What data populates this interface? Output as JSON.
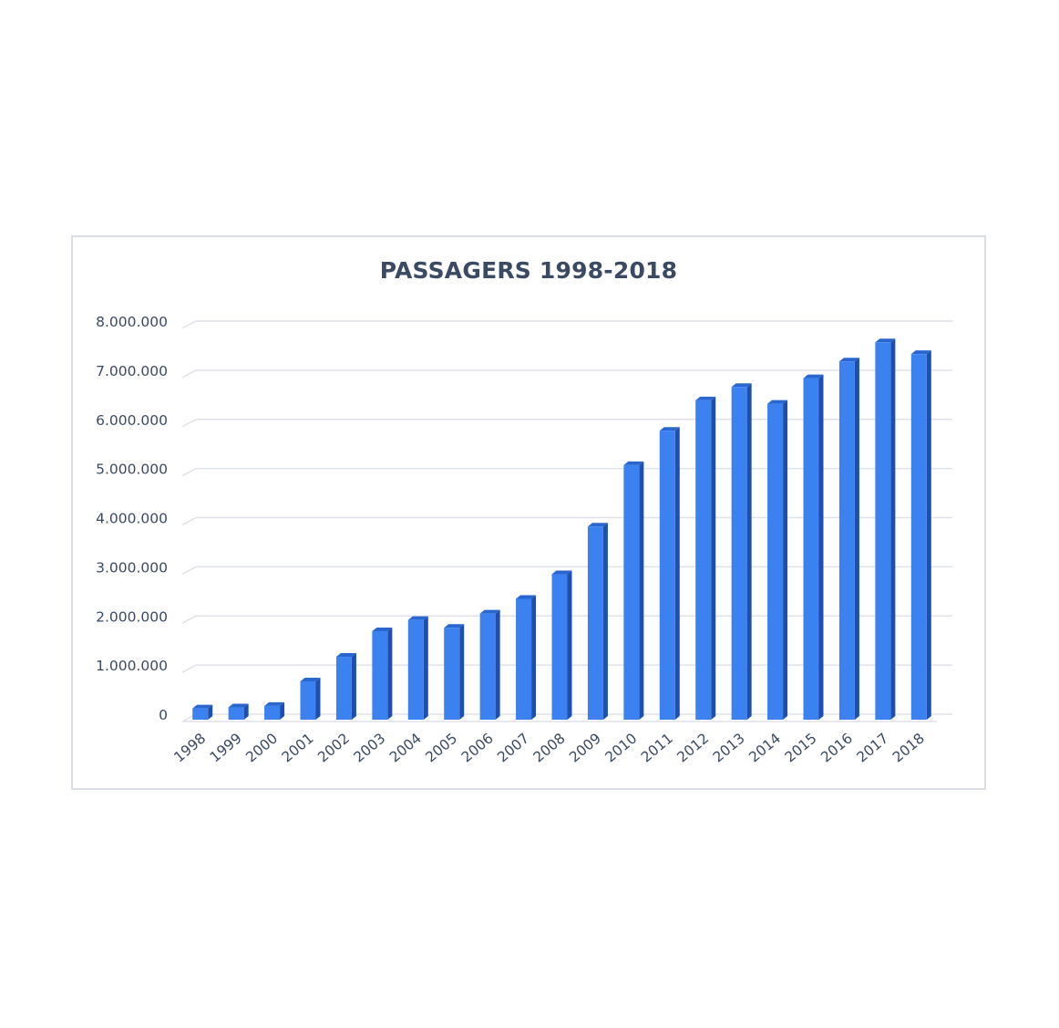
{
  "chart_data": {
    "type": "bar",
    "title": "PASSAGERS 1998-2018",
    "xlabel": "",
    "ylabel": "",
    "categories": [
      "1998",
      "1999",
      "2000",
      "2001",
      "2002",
      "2003",
      "2004",
      "2005",
      "2006",
      "2007",
      "2008",
      "2009",
      "2010",
      "2011",
      "2012",
      "2013",
      "2014",
      "2015",
      "2016",
      "2017",
      "2018"
    ],
    "values": [
      230000,
      250000,
      280000,
      780000,
      1280000,
      1800000,
      2030000,
      1870000,
      2160000,
      2460000,
      2960000,
      3930000,
      5180000,
      5880000,
      6500000,
      6770000,
      6430000,
      6950000,
      7290000,
      7680000,
      7440000
    ],
    "ylim": [
      0,
      8000000
    ],
    "yticks": [
      "0",
      "1.000.000",
      "2.000.000",
      "3.000.000",
      "4.000.000",
      "5.000.000",
      "6.000.000",
      "7.000.000",
      "8.000.000"
    ],
    "grid": true,
    "legend": "none",
    "bar_style": "3d-column",
    "colors": {
      "bar_front": "#3b82f0",
      "bar_side": "#1e4fae",
      "bar_top": "#2a66cf",
      "grid": "#dfe2e8",
      "text": "#3b4a63",
      "frame": "#dadde3"
    }
  }
}
